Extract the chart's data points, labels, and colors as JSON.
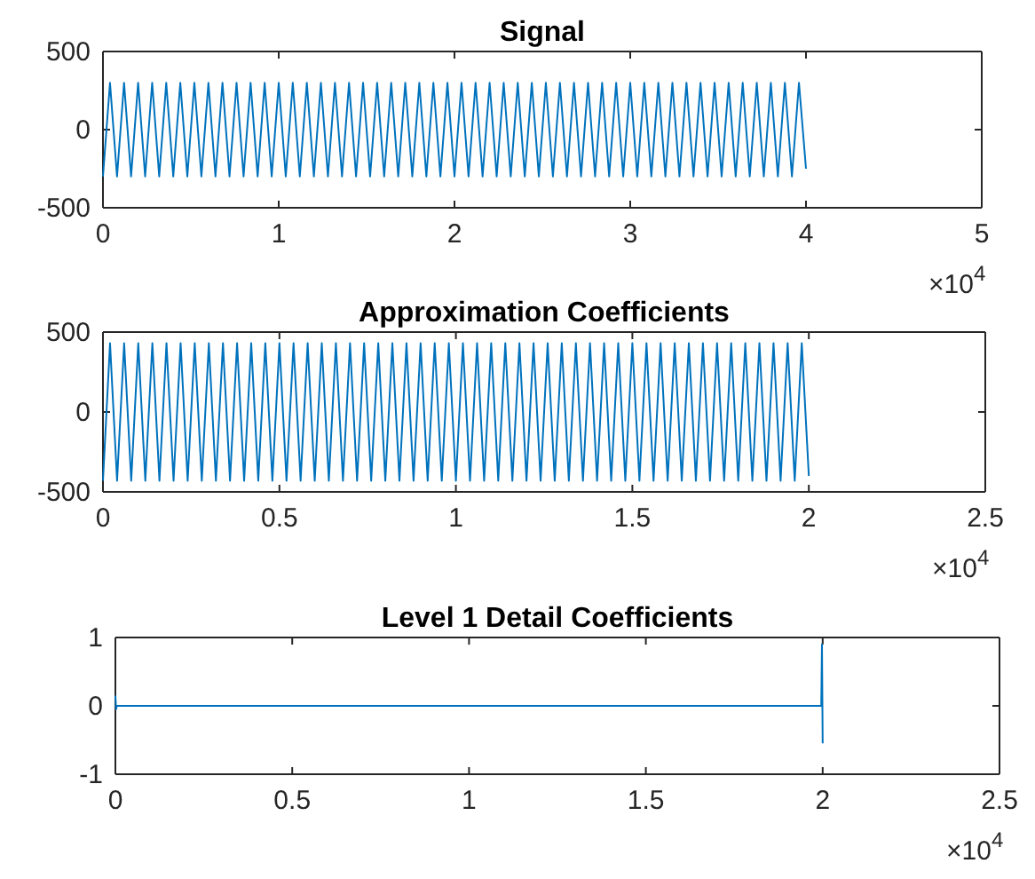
{
  "chart_data": [
    {
      "type": "line",
      "title": "Signal",
      "xlim": [
        0,
        5
      ],
      "xticks": [
        0,
        1,
        2,
        3,
        4,
        5
      ],
      "ylim": [
        -500,
        500
      ],
      "yticks": [
        -500,
        0,
        500
      ],
      "annotations": [
        "×10$^{4}$"
      ],
      "series": [
        {
          "color": "#0072bd",
          "x": [
            0,
            0.04,
            0.08,
            0.12,
            0.16,
            0.2,
            0.24,
            0.28,
            0.32,
            0.36,
            0.4,
            0.44,
            0.48,
            0.52,
            0.56,
            0.6,
            0.64,
            0.68,
            0.72,
            0.76,
            0.8,
            0.84,
            0.88,
            0.92,
            0.96,
            1,
            1.04,
            1.08,
            1.12,
            1.16,
            1.2,
            1.24,
            1.28,
            1.32,
            1.36,
            1.4,
            1.44,
            1.48,
            1.52,
            1.56,
            1.6,
            1.64,
            1.68,
            1.72,
            1.76,
            1.8,
            1.84,
            1.88,
            1.92,
            1.96,
            2,
            2.04,
            2.08,
            2.12,
            2.16,
            2.2,
            2.24,
            2.28,
            2.32,
            2.36,
            2.4,
            2.44,
            2.48,
            2.52,
            2.56,
            2.6,
            2.64,
            2.68,
            2.72,
            2.76,
            2.8,
            2.84,
            2.88,
            2.92,
            2.96,
            3,
            3.04,
            3.08,
            3.12,
            3.16,
            3.2,
            3.24,
            3.28,
            3.32,
            3.36,
            3.4,
            3.44,
            3.48,
            3.52,
            3.56,
            3.6,
            3.64,
            3.68,
            3.72,
            3.76,
            3.8,
            3.84,
            3.88,
            3.92,
            3.96,
            4
          ],
          "values": [
            -300,
            300,
            -300,
            300,
            -300,
            300,
            -300,
            300,
            -300,
            300,
            -300,
            300,
            -300,
            300,
            -300,
            300,
            -300,
            300,
            -300,
            300,
            -300,
            300,
            -300,
            300,
            -300,
            300,
            -300,
            300,
            -300,
            300,
            -300,
            300,
            -300,
            300,
            -300,
            300,
            -300,
            300,
            -300,
            300,
            -300,
            300,
            -300,
            300,
            -300,
            300,
            -300,
            300,
            -300,
            300,
            -300,
            300,
            -300,
            300,
            -300,
            300,
            -300,
            300,
            -300,
            300,
            -300,
            300,
            -300,
            300,
            -300,
            300,
            -300,
            300,
            -300,
            300,
            -300,
            300,
            -300,
            300,
            -300,
            300,
            -300,
            300,
            -300,
            300,
            -300,
            300,
            -300,
            300,
            -300,
            300,
            -300,
            300,
            -300,
            300,
            -300,
            300,
            -300,
            300,
            -300,
            300,
            -300,
            300,
            -300,
            300,
            -250
          ]
        }
      ]
    },
    {
      "type": "line",
      "title": "Approximation Coefficients",
      "xlim": [
        0,
        2.5
      ],
      "xticks": [
        0,
        0.5,
        1,
        1.5,
        2,
        2.5
      ],
      "ylim": [
        -500,
        500
      ],
      "yticks": [
        -500,
        0,
        500
      ],
      "annotations": [
        "×10$^{4}$"
      ],
      "series": [
        {
          "color": "#0072bd",
          "x": [
            0,
            0.02,
            0.04,
            0.06,
            0.08,
            0.1,
            0.12,
            0.14,
            0.16,
            0.18,
            0.2,
            0.22,
            0.24,
            0.26,
            0.28,
            0.3,
            0.32,
            0.34,
            0.36,
            0.38,
            0.4,
            0.42,
            0.44,
            0.46,
            0.48,
            0.5,
            0.52,
            0.54,
            0.56,
            0.58,
            0.6,
            0.62,
            0.64,
            0.66,
            0.68,
            0.7,
            0.72,
            0.74,
            0.76,
            0.78,
            0.8,
            0.82,
            0.84,
            0.86,
            0.88,
            0.9,
            0.92,
            0.94,
            0.96,
            0.98,
            1,
            1.02,
            1.04,
            1.06,
            1.08,
            1.1,
            1.12,
            1.14,
            1.16,
            1.18,
            1.2,
            1.22,
            1.24,
            1.26,
            1.28,
            1.3,
            1.32,
            1.34,
            1.36,
            1.38,
            1.4,
            1.42,
            1.44,
            1.46,
            1.48,
            1.5,
            1.52,
            1.54,
            1.56,
            1.58,
            1.6,
            1.62,
            1.64,
            1.66,
            1.68,
            1.7,
            1.72,
            1.74,
            1.76,
            1.78,
            1.8,
            1.82,
            1.84,
            1.86,
            1.88,
            1.9,
            1.92,
            1.94,
            1.96,
            1.98,
            2
          ],
          "values": [
            -430,
            430,
            -430,
            430,
            -430,
            430,
            -430,
            430,
            -430,
            430,
            -430,
            430,
            -430,
            430,
            -430,
            430,
            -430,
            430,
            -430,
            430,
            -430,
            430,
            -430,
            430,
            -430,
            430,
            -430,
            430,
            -430,
            430,
            -430,
            430,
            -430,
            430,
            -430,
            430,
            -430,
            430,
            -430,
            430,
            -430,
            430,
            -430,
            430,
            -430,
            430,
            -430,
            430,
            -430,
            430,
            -430,
            430,
            -430,
            430,
            -430,
            430,
            -430,
            430,
            -430,
            430,
            -430,
            430,
            -430,
            430,
            -430,
            430,
            -430,
            430,
            -430,
            430,
            -430,
            430,
            -430,
            430,
            -430,
            430,
            -430,
            430,
            -430,
            430,
            -430,
            430,
            -430,
            430,
            -430,
            430,
            -430,
            430,
            -430,
            430,
            -430,
            430,
            -430,
            430,
            -430,
            430,
            -430,
            430,
            -430,
            430,
            -400
          ]
        }
      ]
    },
    {
      "type": "line",
      "title": "Level 1 Detail Coefficients",
      "xlim": [
        0,
        2.5
      ],
      "xticks": [
        0,
        0.5,
        1,
        1.5,
        2,
        2.5
      ],
      "ylim": [
        -1,
        1
      ],
      "yticks": [
        -1,
        0,
        1
      ],
      "annotations": [
        "×10$^{4}$"
      ],
      "series": [
        {
          "color": "#0072bd",
          "x": [
            0,
            0.002,
            0.004,
            1.996,
            1.998,
            2
          ],
          "values": [
            0.15,
            -0.05,
            0,
            0,
            0.9,
            -0.55
          ]
        }
      ]
    }
  ]
}
